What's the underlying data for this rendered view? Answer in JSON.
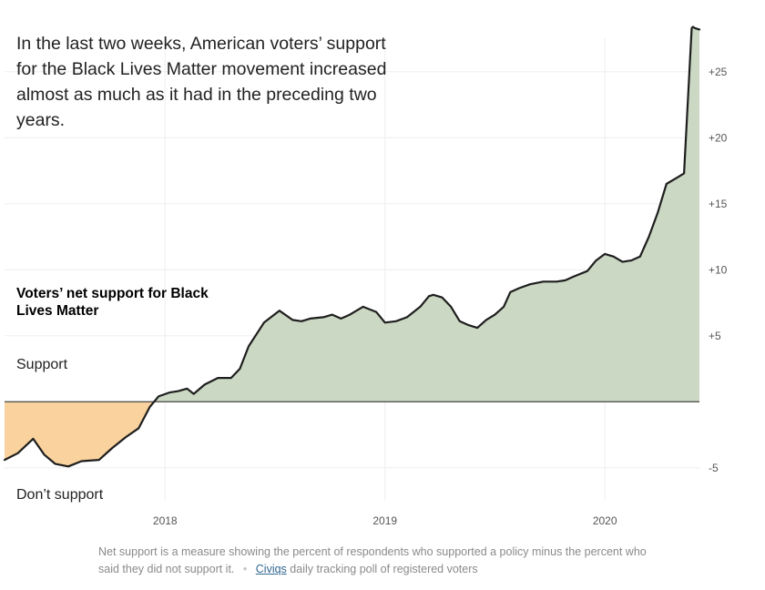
{
  "headline": "In the last two weeks, American voters’ support for the Black Lives Matter movement increased almost as much as it had in the preceding two years.",
  "series_title": "Voters’ net support for Black Lives Matter",
  "zone_labels": {
    "positive": "Support",
    "negative": "Don’t support"
  },
  "footnote": {
    "text": "Net support is a measure showing the percent of respondents who supported a policy minus the percent who said they did not support it.",
    "source_link": "Civiqs",
    "source_rest": "daily tracking poll of registered voters"
  },
  "colors": {
    "positive_fill": "#cbd8c3",
    "negative_fill": "#f9d29d",
    "line": "#1e1e1e",
    "zero_line": "#444444",
    "grid": "#eeeeee"
  },
  "chart_data": {
    "type": "area",
    "title": "Voters’ net support for Black Lives Matter",
    "xlabel": "",
    "ylabel": "",
    "xlim": [
      2017.27,
      2020.43
    ],
    "ylim": [
      -7.5,
      28.5
    ],
    "x_ticks": [
      {
        "value": 2018,
        "label": "2018"
      },
      {
        "value": 2019,
        "label": "2019"
      },
      {
        "value": 2020,
        "label": "2020"
      }
    ],
    "y_ticks": [
      {
        "value": 25,
        "label": "+25"
      },
      {
        "value": 20,
        "label": "+20"
      },
      {
        "value": 15,
        "label": "+15"
      },
      {
        "value": 10,
        "label": "+10"
      },
      {
        "value": 5,
        "label": "+5"
      },
      {
        "value": -5,
        "label": "-5"
      }
    ],
    "grid": true,
    "series": [
      {
        "x": [
          2017.27,
          2017.33,
          2017.4,
          2017.45,
          2017.5,
          2017.56,
          2017.62,
          2017.7,
          2017.76,
          2017.82,
          2017.88,
          2017.93,
          2017.97,
          2018.02,
          2018.06,
          2018.1,
          2018.13,
          2018.18,
          2018.24,
          2018.3,
          2018.34,
          2018.38,
          2018.45,
          2018.52,
          2018.58,
          2018.62,
          2018.66,
          2018.72,
          2018.76,
          2018.8,
          2018.84,
          2018.9,
          2018.96,
          2019.0,
          2019.05,
          2019.1,
          2019.16,
          2019.2,
          2019.22,
          2019.26,
          2019.3,
          2019.34,
          2019.38,
          2019.42,
          2019.46,
          2019.5,
          2019.54,
          2019.57,
          2019.61,
          2019.66,
          2019.72,
          2019.78,
          2019.82,
          2019.86,
          2019.92,
          2019.96,
          2020.0,
          2020.04,
          2020.08,
          2020.12,
          2020.16,
          2020.2,
          2020.24,
          2020.28,
          2020.33,
          2020.36,
          2020.395,
          2020.4,
          2020.41,
          2020.43
        ],
        "y": [
          -4.4,
          -3.9,
          -2.8,
          -4.0,
          -4.7,
          -4.9,
          -4.5,
          -4.4,
          -3.5,
          -2.7,
          -2.0,
          -0.4,
          0.4,
          0.7,
          0.8,
          1.0,
          0.6,
          1.3,
          1.8,
          1.8,
          2.5,
          4.2,
          6.0,
          6.9,
          6.2,
          6.1,
          6.3,
          6.4,
          6.6,
          6.3,
          6.6,
          7.2,
          6.8,
          6.0,
          6.1,
          6.4,
          7.2,
          8.0,
          8.1,
          7.9,
          7.2,
          6.1,
          5.8,
          5.6,
          6.2,
          6.6,
          7.2,
          8.3,
          8.6,
          8.9,
          9.1,
          9.1,
          9.2,
          9.5,
          9.9,
          10.7,
          11.2,
          11.0,
          10.6,
          10.7,
          11.0,
          12.5,
          14.3,
          16.5,
          17.0,
          17.3,
          28.3,
          28.4,
          28.3,
          28.2
        ]
      }
    ]
  }
}
